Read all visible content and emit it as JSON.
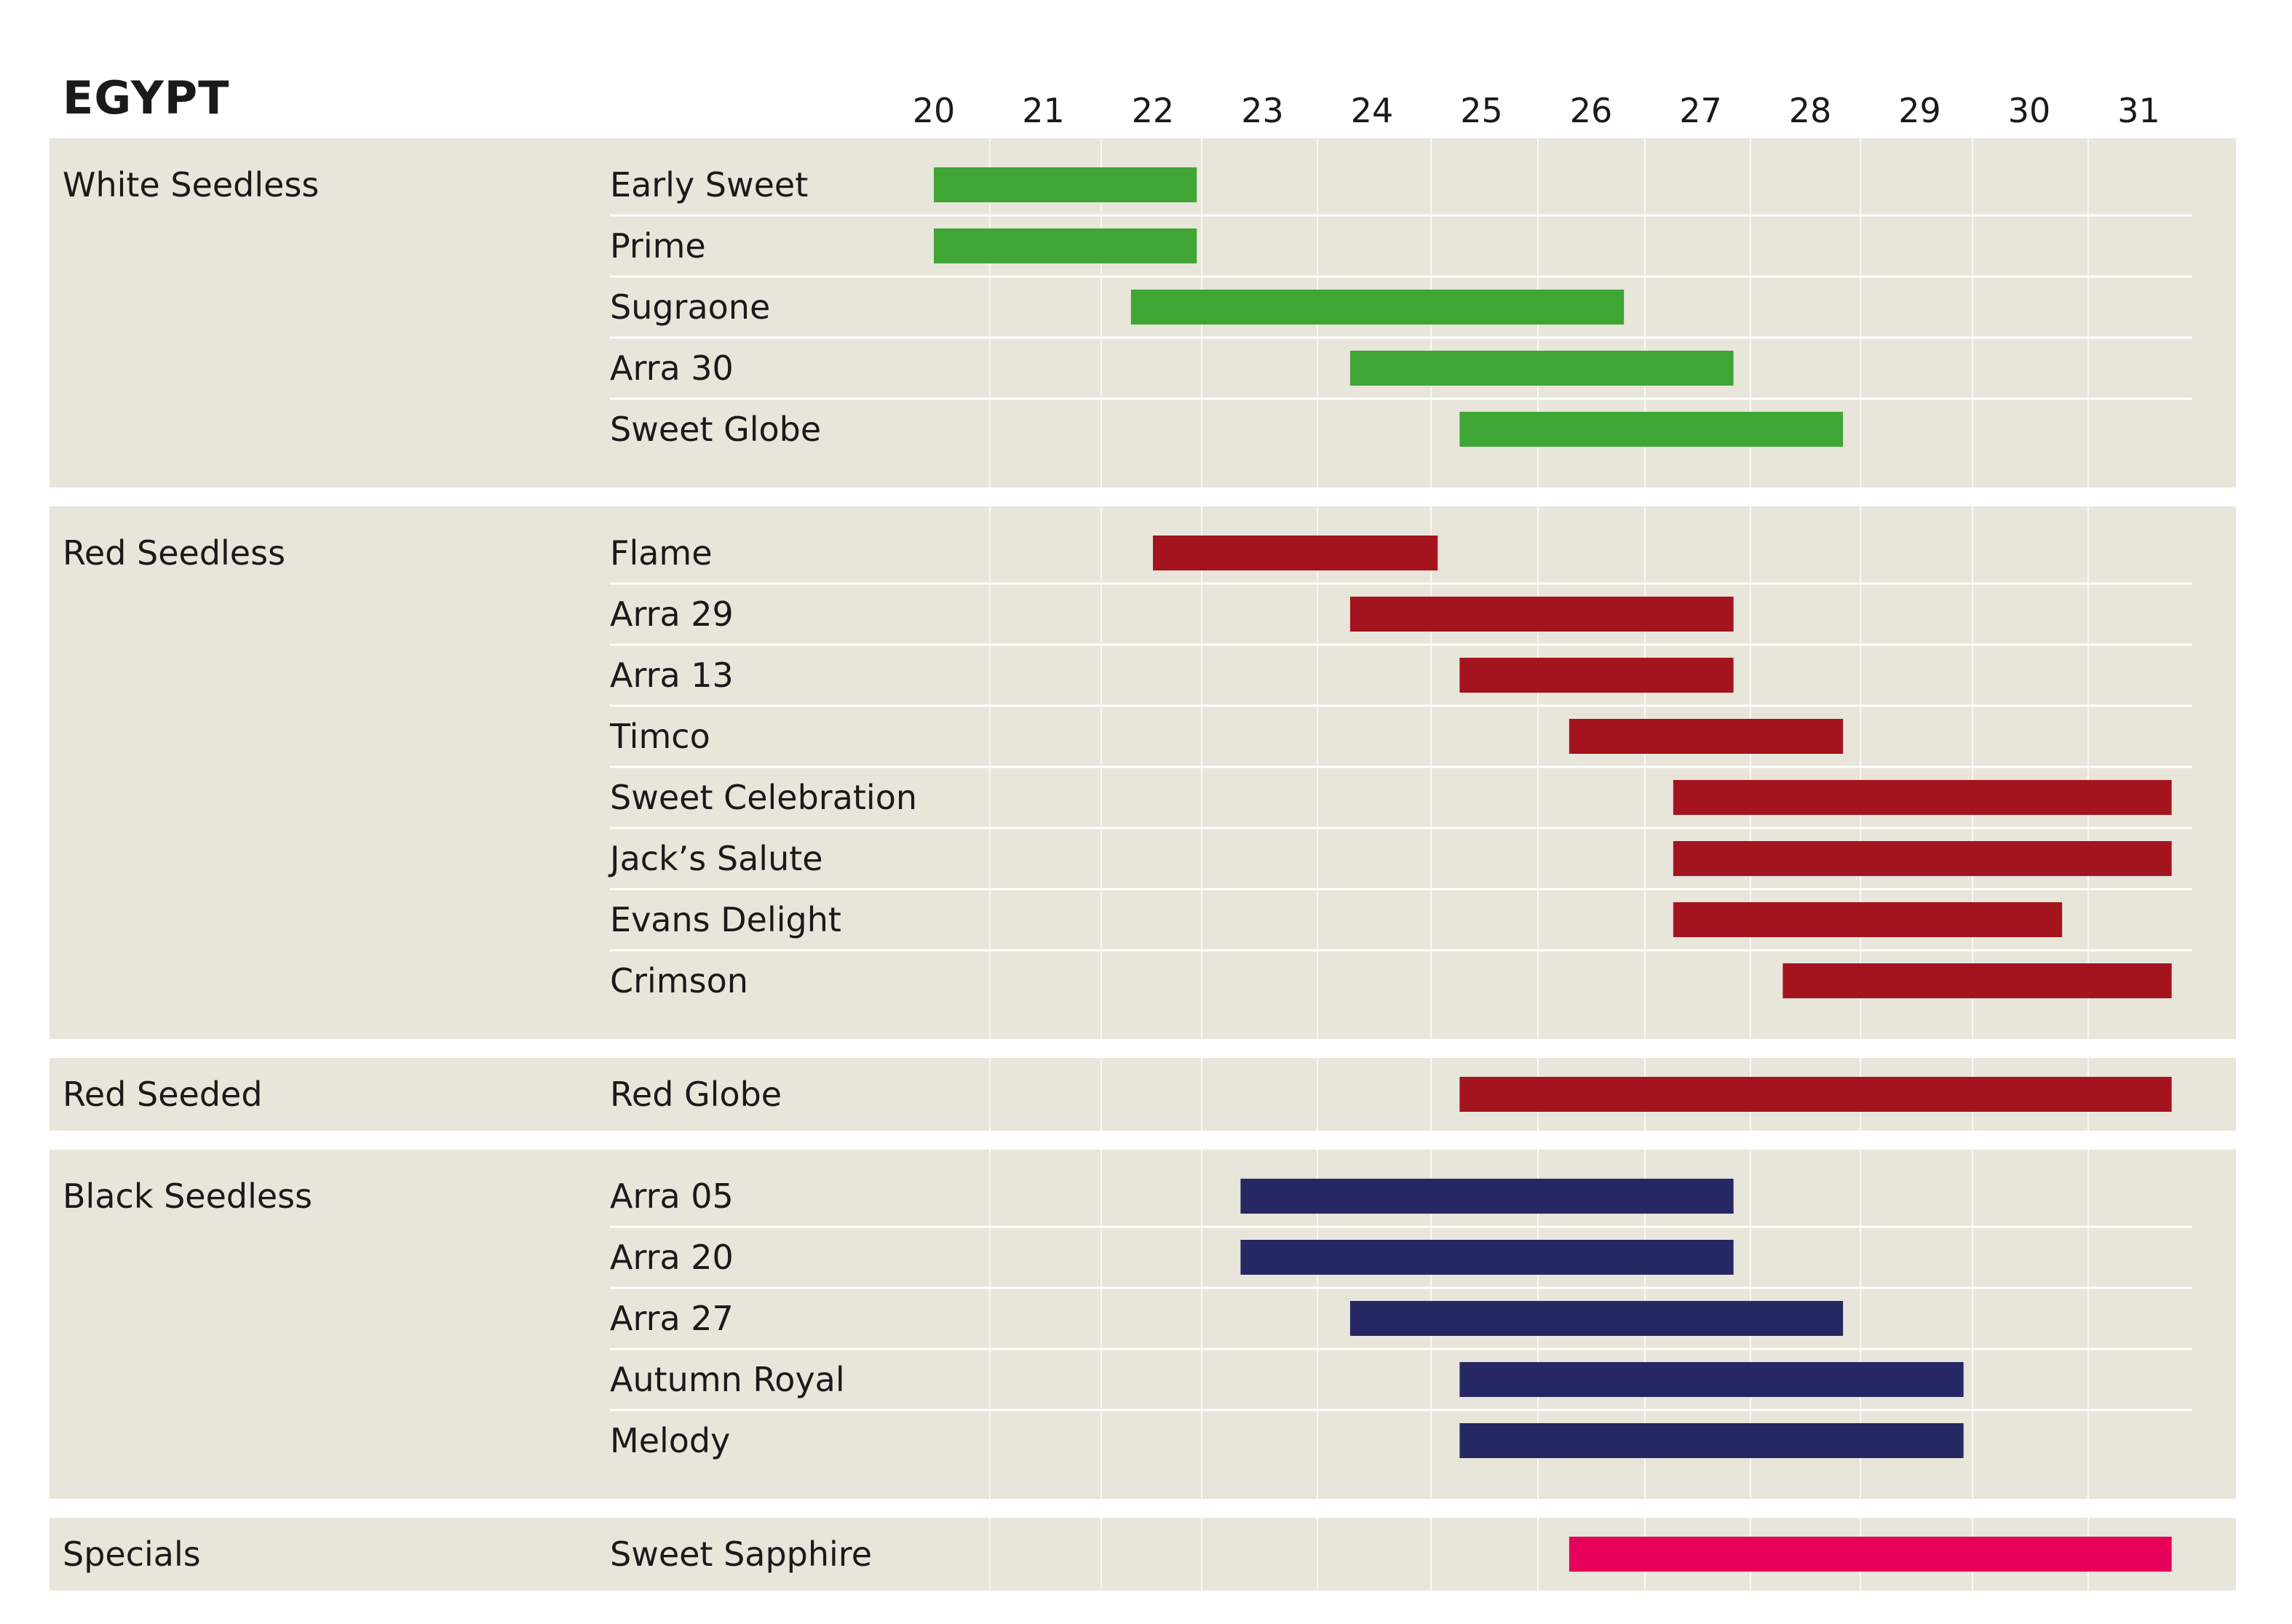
{
  "chart_data": {
    "type": "bar",
    "title": "EGYPT",
    "x_ticks": [
      "20",
      "21",
      "22",
      "23",
      "24",
      "25",
      "26",
      "27",
      "28",
      "29",
      "30",
      "31"
    ],
    "colors": {
      "White Seedless": "#3fa535",
      "Red Seedless": "#a3141e",
      "Red Seeded": "#a3141e",
      "Black Seedless": "#262864",
      "Specials": "#e6005a",
      "background": "#e8e5da"
    },
    "groups": [
      {
        "name": "White Seedless",
        "items": [
          {
            "label": "Early Sweet",
            "start": 20,
            "end": 22.4
          },
          {
            "label": "Prime",
            "start": 20,
            "end": 22.4
          },
          {
            "label": "Sugraone",
            "start": 21.8,
            "end": 26.3
          },
          {
            "label": "Arra 30",
            "start": 23.8,
            "end": 27.3
          },
          {
            "label": "Sweet Globe",
            "start": 24.8,
            "end": 28.3
          }
        ]
      },
      {
        "name": "Red Seedless",
        "items": [
          {
            "label": "Flame",
            "start": 22.0,
            "end": 24.6
          },
          {
            "label": "Arra 29",
            "start": 23.8,
            "end": 27.3
          },
          {
            "label": "Arra 13",
            "start": 24.8,
            "end": 27.3
          },
          {
            "label": "Timco",
            "start": 25.8,
            "end": 28.3
          },
          {
            "label": "Sweet Celebration",
            "start": 26.75,
            "end": 31.3
          },
          {
            "label": "Jack’s Salute",
            "start": 26.75,
            "end": 31.3
          },
          {
            "label": "Evans Delight",
            "start": 26.75,
            "end": 30.3
          },
          {
            "label": "Crimson",
            "start": 27.75,
            "end": 31.3
          }
        ]
      },
      {
        "name": "Red Seeded",
        "items": [
          {
            "label": "Red Globe",
            "start": 24.8,
            "end": 31.3
          }
        ]
      },
      {
        "name": "Black Seedless",
        "items": [
          {
            "label": "Arra 05",
            "start": 22.8,
            "end": 27.3
          },
          {
            "label": "Arra 20",
            "start": 22.8,
            "end": 27.3
          },
          {
            "label": "Arra 27",
            "start": 23.8,
            "end": 28.3
          },
          {
            "label": "Autumn Royal",
            "start": 24.8,
            "end": 29.4
          },
          {
            "label": "Melody",
            "start": 24.8,
            "end": 29.4
          }
        ]
      },
      {
        "name": "Specials",
        "items": [
          {
            "label": "Sweet Sapphire",
            "start": 25.8,
            "end": 31.3
          }
        ]
      }
    ]
  }
}
